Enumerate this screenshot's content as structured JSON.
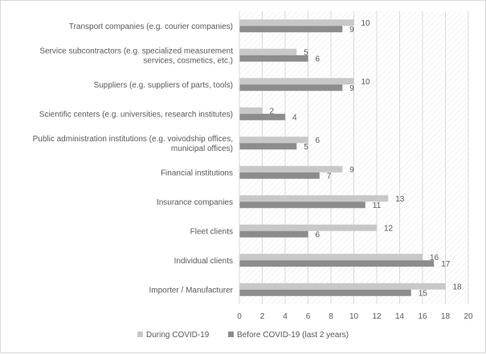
{
  "chart_data": {
    "type": "bar",
    "orientation": "horizontal",
    "categories": [
      [
        "Transport companies (e.g. courier companies)"
      ],
      [
        "Service subcontractors (e.g. specialized measurement",
        "services, cosmetics, etc.)"
      ],
      [
        "Suppliers (e.g. suppliers of parts, tools)"
      ],
      [
        "Scientific centers (e.g. universities, research institutes)"
      ],
      [
        "Public administration institutions (e.g. voivodship offices,",
        "municipal offices)"
      ],
      [
        "Financial institutions"
      ],
      [
        "Insurance companies"
      ],
      [
        "Fleet clients"
      ],
      [
        "Individual clients"
      ],
      [
        "Importer / Manufacturer"
      ]
    ],
    "series": [
      {
        "name": "During COVID-19",
        "color": "#c8c8c8",
        "values": [
          10,
          5,
          10,
          2,
          6,
          9,
          13,
          12,
          16,
          18
        ]
      },
      {
        "name": "Before COVID-19 (last 2 years)",
        "color": "#8c8c8c",
        "values": [
          9,
          6,
          9,
          4,
          5,
          7,
          11,
          6,
          17,
          15
        ]
      }
    ],
    "xlim": [
      0,
      20
    ],
    "xticks": [
      0,
      2,
      4,
      6,
      8,
      10,
      12,
      14,
      16,
      18,
      20
    ],
    "grid": true,
    "plot_background": "hatched",
    "legend_position": "bottom",
    "title": "",
    "xlabel": "",
    "ylabel": ""
  }
}
